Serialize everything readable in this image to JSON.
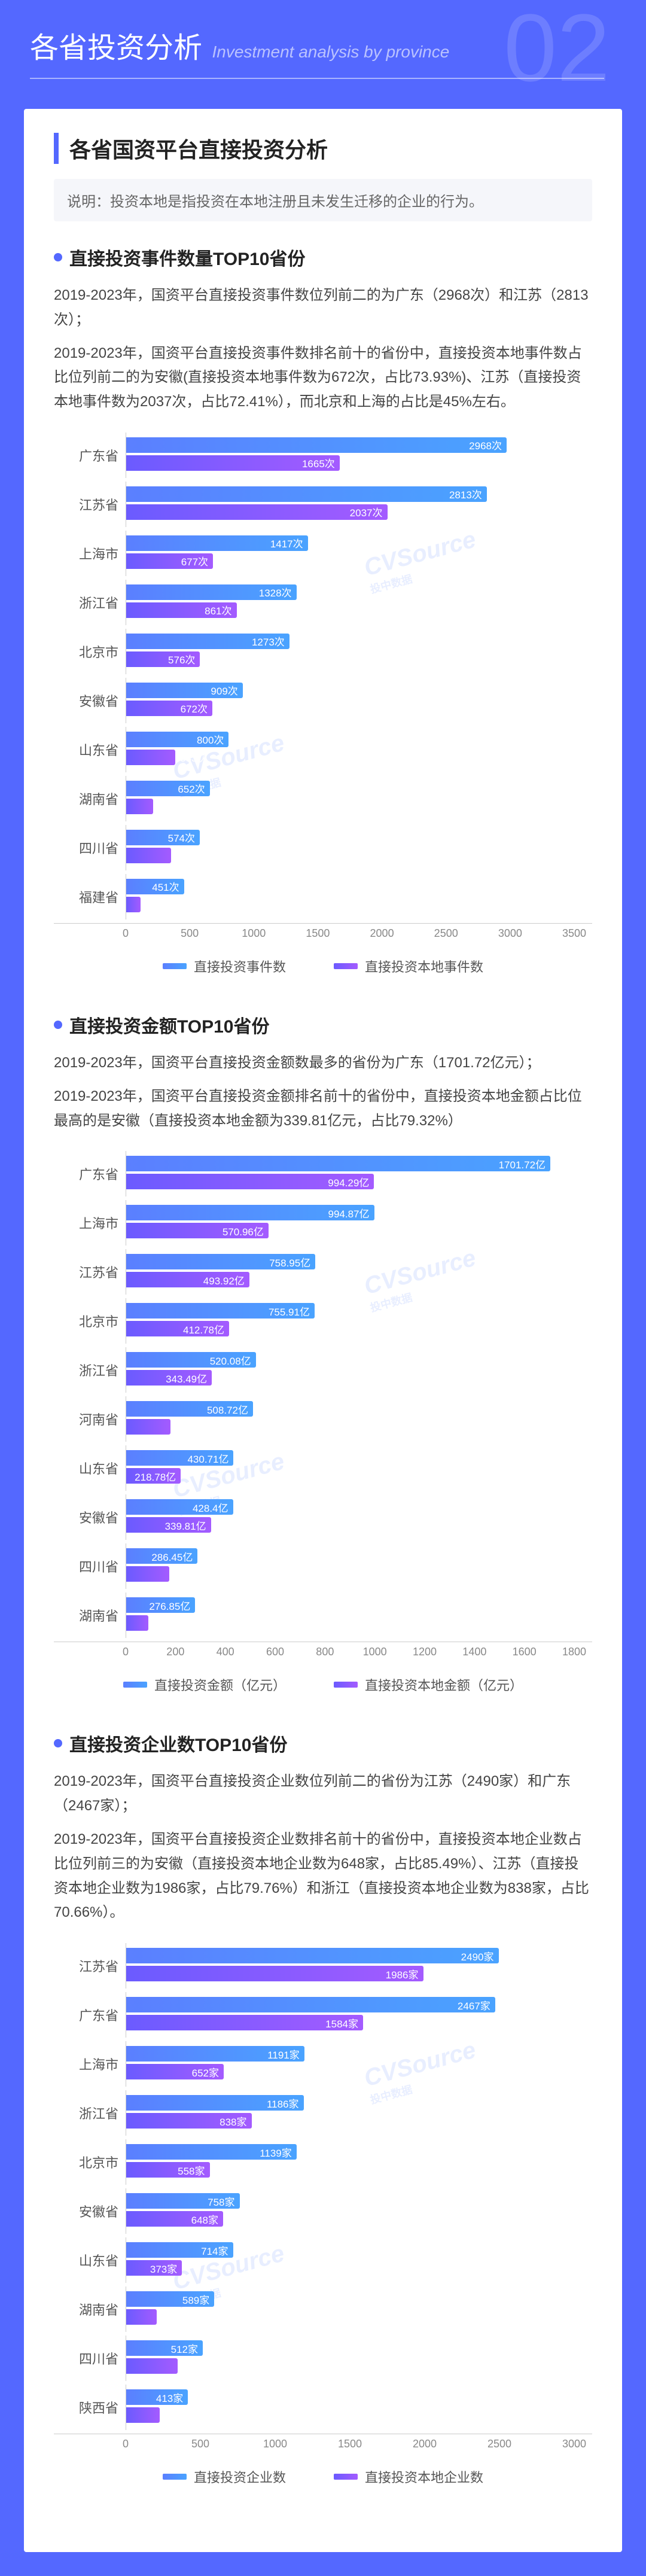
{
  "header": {
    "bignum": "02",
    "title": "各省投资分析",
    "subtitle": "Investment analysis by province"
  },
  "card": {
    "title": "各省国资平台直接投资分析",
    "note": "说明：投资本地是指投资在本地注册且未发生迁移的企业的行为。"
  },
  "colors": {
    "bar_primary_gradient_from": "#5b7fff",
    "bar_primary_gradient_to": "#4aa3ff",
    "bar_secondary_gradient_from": "#6b5bff",
    "bar_secondary_gradient_to": "#a45bff",
    "page_bg": "#5468ff",
    "card_bg": "#ffffff"
  },
  "watermark": {
    "text": "CVSource",
    "sub": "投中数据"
  },
  "charts": [
    {
      "title": "直接投资事件数量TOP10省份",
      "paras": [
        "2019-2023年，国资平台直接投资事件数位列前二的为广东（2968次）和江苏（2813次）；",
        "2019-2023年，国资平台直接投资事件数排名前十的省份中，直接投资本地事件数占比位列前二的为安徽(直接投资本地事件数为672次，占比73.93%)、江苏（直接投资本地事件数为2037次，占比72.41%），而北京和上海的占比是45%左右。"
      ],
      "unit": "次",
      "legend": [
        "直接投资事件数",
        "直接投资本地事件数"
      ],
      "xmax": 3500,
      "ticks": [
        0,
        500,
        1000,
        1500,
        2000,
        2500,
        3000,
        3500
      ],
      "rows": [
        {
          "label": "广东省",
          "a": 2968,
          "b": 1665
        },
        {
          "label": "江苏省",
          "a": 2813,
          "b": 2037
        },
        {
          "label": "上海市",
          "a": 1417,
          "b": 677
        },
        {
          "label": "浙江省",
          "a": 1328,
          "b": 861
        },
        {
          "label": "北京市",
          "a": 1273,
          "b": 576
        },
        {
          "label": "安徽省",
          "a": 909,
          "b": 672
        },
        {
          "label": "山东省",
          "a": 800,
          "b": 383
        },
        {
          "label": "湖南省",
          "a": 652,
          "b": 212
        },
        {
          "label": "四川省",
          "a": 574,
          "b": 348
        },
        {
          "label": "福建省",
          "a": 451,
          "b": 112
        }
      ]
    },
    {
      "title": "直接投资金额TOP10省份",
      "paras": [
        "2019-2023年，国资平台直接投资金额数最多的省份为广东（1701.72亿元）；",
        "2019-2023年，国资平台直接投资金额排名前十的省份中，直接投资本地金额占比位最高的是安徽（直接投资本地金额为339.81亿元，占比79.32%）"
      ],
      "unit": "亿",
      "legend": [
        "直接投资金额（亿元）",
        "直接投资本地金额（亿元）"
      ],
      "xmax": 1800,
      "ticks": [
        0,
        200,
        400,
        600,
        800,
        1000,
        1200,
        1400,
        1600,
        1800
      ],
      "rows": [
        {
          "label": "广东省",
          "a": 1701.72,
          "b": 994.29
        },
        {
          "label": "上海市",
          "a": 994.87,
          "b": 570.96
        },
        {
          "label": "江苏省",
          "a": 758.95,
          "b": 493.92
        },
        {
          "label": "北京市",
          "a": 755.91,
          "b": 412.78
        },
        {
          "label": "浙江省",
          "a": 520.08,
          "b": 343.49
        },
        {
          "label": "河南省",
          "a": 508.72,
          "b": 178.12
        },
        {
          "label": "山东省",
          "a": 430.71,
          "b": 218.78
        },
        {
          "label": "安徽省",
          "a": 428.4,
          "b": 339.81
        },
        {
          "label": "四川省",
          "a": 286.45,
          "b": 173.67
        },
        {
          "label": "湖南省",
          "a": 276.85,
          "b": 89.4
        }
      ]
    },
    {
      "title": "直接投资企业数TOP10省份",
      "paras": [
        "2019-2023年，国资平台直接投资企业数位列前二的省份为江苏（2490家）和广东（2467家）；",
        "2019-2023年，国资平台直接投资企业数排名前十的省份中，直接投资本地企业数占比位列前三的为安徽（直接投资本地企业数为648家，占比85.49%）、江苏（直接投资本地企业数为1986家，占比79.76%）和浙江（直接投资本地企业数为838家，占比70.66%）。"
      ],
      "unit": "家",
      "legend": [
        "直接投资企业数",
        "直接投资本地企业数"
      ],
      "xmax": 3000,
      "ticks": [
        0,
        500,
        1000,
        1500,
        2000,
        2500,
        3000
      ],
      "rows": [
        {
          "label": "江苏省",
          "a": 2490,
          "b": 1986
        },
        {
          "label": "广东省",
          "a": 2467,
          "b": 1584
        },
        {
          "label": "上海市",
          "a": 1191,
          "b": 652
        },
        {
          "label": "浙江省",
          "a": 1186,
          "b": 838
        },
        {
          "label": "北京市",
          "a": 1139,
          "b": 558
        },
        {
          "label": "安徽省",
          "a": 758,
          "b": 648
        },
        {
          "label": "山东省",
          "a": 714,
          "b": 373
        },
        {
          "label": "湖南省",
          "a": 589,
          "b": 205
        },
        {
          "label": "四川省",
          "a": 512,
          "b": 344
        },
        {
          "label": "陕西省",
          "a": 413,
          "b": 222
        }
      ]
    }
  ]
}
